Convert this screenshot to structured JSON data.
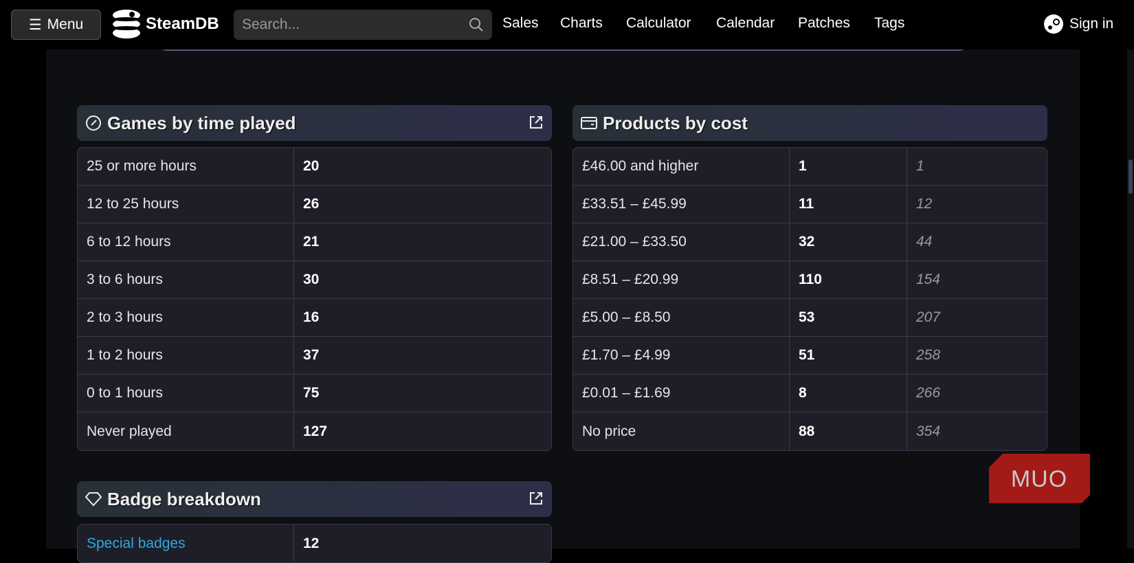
{
  "header": {
    "menu_label": "Menu",
    "logo_text": "SteamDB",
    "search_placeholder": "Search...",
    "nav": [
      "Sales",
      "Charts",
      "Calculator",
      "Calendar",
      "Patches",
      "Tags"
    ],
    "sign_in": "Sign in"
  },
  "games_by_time": {
    "title": "Games by time played",
    "icon": "gauge-icon",
    "rows": [
      [
        "25 or more hours",
        "20"
      ],
      [
        "12 to 25 hours",
        "26"
      ],
      [
        "6 to 12 hours",
        "21"
      ],
      [
        "3 to 6 hours",
        "30"
      ],
      [
        "2 to 3 hours",
        "16"
      ],
      [
        "1 to 2 hours",
        "37"
      ],
      [
        "0 to 1 hours",
        "75"
      ],
      [
        "Never played",
        "127"
      ]
    ]
  },
  "products_by_cost": {
    "title": "Products by cost",
    "icon": "wallet-icon",
    "rows": [
      [
        "£46.00 and higher",
        "1",
        "1"
      ],
      [
        "£33.51 – £45.99",
        "11",
        "12"
      ],
      [
        "£21.00 – £33.50",
        "32",
        "44"
      ],
      [
        "£8.51 – £20.99",
        "110",
        "154"
      ],
      [
        "£5.00 – £8.50",
        "53",
        "207"
      ],
      [
        "£1.70 – £4.99",
        "51",
        "258"
      ],
      [
        "£0.01 – £1.69",
        "8",
        "266"
      ],
      [
        "No price",
        "88",
        "354"
      ]
    ]
  },
  "badges": {
    "title": "Badge breakdown",
    "icon": "gem-icon",
    "rows": [
      [
        "Special badges",
        "12"
      ]
    ]
  },
  "watermark": "MUO",
  "colors": {
    "link": "#2ea8e0",
    "watermark": "#a31a17"
  }
}
